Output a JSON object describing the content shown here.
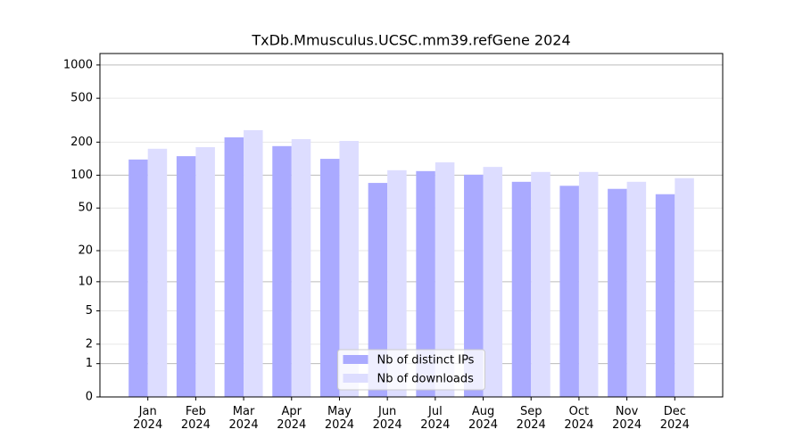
{
  "chart_data": {
    "type": "bar",
    "title": "TxDb.Mmusculus.UCSC.mm39.refGene 2024",
    "categories": [
      "Jan 2024",
      "Feb 2024",
      "Mar 2024",
      "Apr 2024",
      "May 2024",
      "Jun 2024",
      "Jul 2024",
      "Aug 2024",
      "Sep 2024",
      "Oct 2024",
      "Nov 2024",
      "Dec 2024"
    ],
    "series": [
      {
        "name": "Nb of distinct IPs",
        "color": "#aaaaff",
        "values": [
          139,
          149,
          221,
          184,
          141,
          85,
          109,
          101,
          87,
          80,
          75,
          67
        ]
      },
      {
        "name": "Nb of downloads",
        "color": "#ddddff",
        "values": [
          174,
          180,
          257,
          213,
          205,
          111,
          131,
          119,
          107,
          107,
          87,
          94
        ]
      }
    ],
    "yscale": "log1p",
    "ylim": [
      0,
      1270
    ],
    "yticks": [
      0,
      1,
      2,
      5,
      10,
      20,
      50,
      100,
      200,
      500,
      1000
    ],
    "grid": true,
    "legend": "lower center"
  }
}
